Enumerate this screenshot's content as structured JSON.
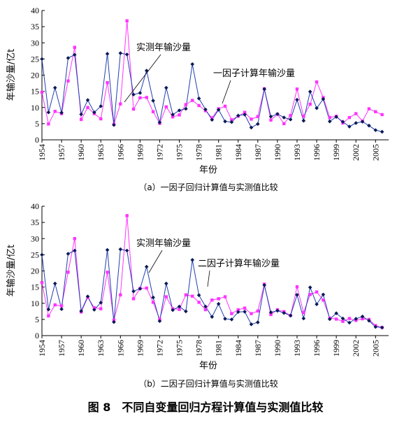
{
  "figure_caption": "图 8　不同自变量回归方程计算值与实测值比较",
  "chart_data": [
    {
      "type": "line",
      "caption": "（a）一因子回归计算值与实测值比较",
      "xlabel": "年份",
      "ylabel": "年输沙量/亿t",
      "ylim": [
        0,
        40
      ],
      "yticks": [
        0,
        5,
        10,
        15,
        20,
        25,
        30,
        35,
        40
      ],
      "xlim": [
        1954,
        2007
      ],
      "xticks": [
        1954,
        1957,
        1960,
        1963,
        1966,
        1969,
        1972,
        1975,
        1978,
        1981,
        1984,
        1987,
        1990,
        1993,
        1996,
        1999,
        2002,
        2005
      ],
      "x": [
        1954,
        1955,
        1956,
        1957,
        1958,
        1959,
        1960,
        1961,
        1962,
        1963,
        1964,
        1965,
        1966,
        1967,
        1968,
        1969,
        1970,
        1971,
        1972,
        1973,
        1974,
        1975,
        1976,
        1977,
        1978,
        1979,
        1980,
        1981,
        1982,
        1983,
        1984,
        1985,
        1986,
        1987,
        1988,
        1989,
        1990,
        1991,
        1992,
        1993,
        1994,
        1995,
        1996,
        1997,
        1998,
        1999,
        2000,
        2001,
        2002,
        2003,
        2004,
        2005,
        2006
      ],
      "series": [
        {
          "name": "实测年输沙量",
          "color": "#ff33ff",
          "marker": "square",
          "values": [
            14.7,
            4.9,
            8.8,
            8.1,
            18.2,
            28.6,
            6.3,
            10.0,
            8.1,
            6.5,
            17.7,
            4.8,
            11.1,
            36.8,
            9.5,
            13.0,
            13.1,
            8.7,
            5.1,
            10.2,
            7.1,
            7.7,
            10.9,
            12.2,
            10.6,
            9.0,
            6.8,
            9.6,
            10.4,
            6.2,
            7.3,
            8.5,
            6.4,
            7.2,
            15.8,
            6.1,
            7.9,
            5.0,
            7.5,
            15.7,
            7.3,
            11.0,
            17.9,
            13.1,
            6.9,
            7.3,
            5.2,
            6.9,
            8.1,
            5.8,
            9.6,
            8.7,
            7.8
          ]
        },
        {
          "name": "一因子计算年输沙量",
          "color": "#1f3fb0",
          "marker": "diamond",
          "values": [
            25.0,
            8.5,
            16.1,
            8.4,
            25.3,
            26.3,
            7.9,
            12.3,
            8.5,
            10.4,
            26.6,
            4.6,
            26.8,
            26.4,
            14.0,
            14.5,
            21.4,
            12.1,
            5.4,
            16.1,
            7.8,
            9.1,
            9.6,
            23.4,
            12.8,
            9.4,
            6.2,
            9.3,
            5.7,
            5.5,
            7.5,
            7.8,
            3.8,
            4.9,
            15.7,
            7.2,
            8.0,
            6.9,
            6.3,
            12.4,
            5.9,
            14.9,
            9.8,
            12.6,
            5.7,
            7.1,
            5.6,
            4.1,
            5.2,
            5.6,
            4.4,
            3.0,
            2.5
          ]
        }
      ],
      "annotations": [
        "实测年输沙量",
        "一因子计算年输沙量"
      ]
    },
    {
      "type": "line",
      "caption": "（b）二因子回归计算值与实测值比较",
      "xlabel": "年份",
      "ylabel": "年输沙量/亿t",
      "ylim": [
        0,
        40
      ],
      "yticks": [
        0,
        5,
        10,
        15,
        20,
        25,
        30,
        35,
        40
      ],
      "xlim": [
        1954,
        2007
      ],
      "xticks": [
        1954,
        1957,
        1960,
        1963,
        1966,
        1969,
        1972,
        1975,
        1978,
        1981,
        1984,
        1987,
        1990,
        1993,
        1996,
        1999,
        2002,
        2005
      ],
      "x": [
        1954,
        1955,
        1956,
        1957,
        1958,
        1959,
        1960,
        1961,
        1962,
        1963,
        1964,
        1965,
        1966,
        1967,
        1968,
        1969,
        1970,
        1971,
        1972,
        1973,
        1974,
        1975,
        1976,
        1977,
        1978,
        1979,
        1980,
        1981,
        1982,
        1983,
        1984,
        1985,
        1986,
        1987,
        1988,
        1989,
        1990,
        1991,
        1992,
        1993,
        1994,
        1995,
        1996,
        1997,
        1998,
        1999,
        2000,
        2001,
        2002,
        2003,
        2004,
        2005,
        2006
      ],
      "series": [
        {
          "name": "实测年输沙量",
          "color": "#ff33ff",
          "marker": "square",
          "values": [
            16.4,
            6.1,
            9.5,
            9.2,
            19.6,
            30.0,
            7.3,
            11.8,
            8.6,
            8.3,
            19.6,
            4.8,
            12.6,
            37.1,
            11.4,
            14.6,
            14.7,
            10.3,
            5.1,
            12.0,
            8.3,
            8.1,
            12.6,
            12.2,
            10.3,
            8.0,
            11.0,
            11.4,
            12.0,
            6.8,
            8.0,
            8.5,
            6.8,
            7.6,
            15.9,
            6.5,
            8.0,
            7.4,
            6.2,
            15.1,
            7.1,
            12.7,
            13.5,
            11.0,
            5.4,
            5.1,
            4.4,
            5.3,
            4.7,
            5.2,
            5.0,
            3.1,
            2.5
          ]
        },
        {
          "name": "二因子计算年输沙量",
          "color": "#1f3fb0",
          "marker": "diamond",
          "values": [
            25.0,
            8.1,
            16.1,
            8.2,
            25.3,
            26.3,
            7.6,
            12.1,
            8.0,
            10.2,
            26.5,
            4.2,
            26.7,
            26.3,
            13.7,
            14.5,
            21.3,
            11.8,
            4.5,
            16.1,
            7.9,
            9.0,
            7.5,
            23.4,
            12.5,
            9.0,
            5.8,
            9.8,
            5.2,
            5.0,
            7.3,
            7.4,
            3.5,
            4.1,
            15.6,
            7.2,
            7.7,
            7.0,
            6.2,
            12.6,
            5.3,
            14.9,
            9.7,
            12.7,
            5.1,
            6.9,
            5.3,
            4.0,
            5.2,
            5.9,
            4.6,
            2.7,
            2.5
          ]
        }
      ],
      "annotations": [
        "实测年输沙量",
        "二因子计算年输沙量"
      ]
    }
  ]
}
